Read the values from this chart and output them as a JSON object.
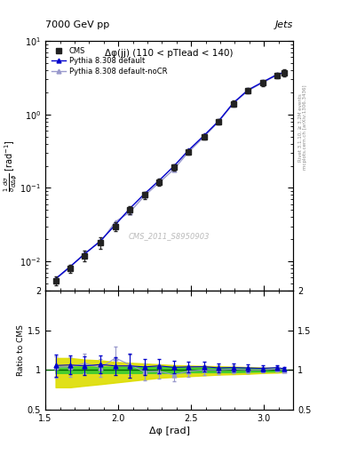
{
  "title_left": "7000 GeV pp",
  "title_right": "Jets",
  "plot_title": "Δφ(jj) (110 < pTlead < 140)",
  "ylabel_main": "$\\frac{1}{\\sigma}\\frac{d\\sigma}{d\\Delta\\phi}$ [rad$^{-1}$]",
  "ylabel_ratio": "Ratio to CMS",
  "xlabel": "Δφ [rad]",
  "watermark": "CMS_2011_S8950903",
  "right_label": "Rivet 3.1.10, ≥ 3.2M events",
  "right_label2": "mcplots.cern.ch [arXiv:1306.3436]",
  "cms_x": [
    1.57,
    1.67,
    1.77,
    1.88,
    1.98,
    2.08,
    2.18,
    2.28,
    2.38,
    2.48,
    2.59,
    2.69,
    2.79,
    2.89,
    2.99,
    3.09,
    3.14
  ],
  "cms_y": [
    0.0055,
    0.008,
    0.012,
    0.018,
    0.03,
    0.05,
    0.08,
    0.12,
    0.19,
    0.31,
    0.5,
    0.8,
    1.4,
    2.1,
    2.7,
    3.4,
    3.7
  ],
  "cms_yerr": [
    0.0008,
    0.001,
    0.002,
    0.003,
    0.004,
    0.006,
    0.009,
    0.013,
    0.018,
    0.028,
    0.045,
    0.07,
    0.13,
    0.18,
    0.25,
    0.32,
    0.38
  ],
  "py_default_x": [
    1.57,
    1.67,
    1.77,
    1.88,
    1.98,
    2.08,
    2.18,
    2.28,
    2.38,
    2.48,
    2.59,
    2.69,
    2.79,
    2.89,
    2.99,
    3.09,
    3.14
  ],
  "py_default_y": [
    0.0058,
    0.0085,
    0.0126,
    0.0192,
    0.0315,
    0.0525,
    0.083,
    0.126,
    0.196,
    0.322,
    0.52,
    0.82,
    1.44,
    2.15,
    2.75,
    3.5,
    3.75
  ],
  "py_nocr_x": [
    1.57,
    1.67,
    1.77,
    1.88,
    1.98,
    2.08,
    2.18,
    2.28,
    2.38,
    2.48,
    2.59,
    2.69,
    2.79,
    2.89,
    2.99,
    3.09,
    3.14
  ],
  "py_nocr_y": [
    0.0057,
    0.0083,
    0.013,
    0.0185,
    0.0345,
    0.047,
    0.078,
    0.118,
    0.178,
    0.305,
    0.5,
    0.8,
    1.41,
    2.1,
    2.7,
    3.44,
    3.68
  ],
  "ratio_cms_err_green_lo": [
    0.04,
    0.04,
    0.04,
    0.04,
    0.04,
    0.04,
    0.04,
    0.04,
    0.04,
    0.03,
    0.03,
    0.03,
    0.03,
    0.025,
    0.02,
    0.02,
    0.015
  ],
  "ratio_cms_err_green_hi": [
    0.04,
    0.04,
    0.04,
    0.04,
    0.04,
    0.04,
    0.04,
    0.04,
    0.04,
    0.03,
    0.03,
    0.03,
    0.03,
    0.025,
    0.02,
    0.02,
    0.015
  ],
  "ratio_cms_err_yellow_lo": [
    0.22,
    0.22,
    0.2,
    0.18,
    0.16,
    0.14,
    0.12,
    0.1,
    0.09,
    0.08,
    0.07,
    0.06,
    0.055,
    0.05,
    0.04,
    0.035,
    0.03
  ],
  "ratio_cms_err_yellow_hi": [
    0.15,
    0.15,
    0.13,
    0.12,
    0.1,
    0.09,
    0.08,
    0.07,
    0.06,
    0.055,
    0.05,
    0.045,
    0.04,
    0.035,
    0.03,
    0.025,
    0.02
  ],
  "ratio_default_y": [
    1.055,
    1.062,
    1.05,
    1.067,
    1.05,
    1.05,
    1.038,
    1.05,
    1.032,
    1.038,
    1.04,
    1.025,
    1.029,
    1.024,
    1.019,
    1.029,
    1.014
  ],
  "ratio_default_yerr": [
    0.14,
    0.12,
    0.12,
    0.11,
    0.11,
    0.15,
    0.1,
    0.09,
    0.08,
    0.07,
    0.06,
    0.055,
    0.05,
    0.04,
    0.035,
    0.03,
    0.025
  ],
  "ratio_nocr_y": [
    1.036,
    1.038,
    1.083,
    1.028,
    1.15,
    1.064,
    0.976,
    0.983,
    0.937,
    0.984,
    1.0,
    1.0,
    1.007,
    1.0,
    1.0,
    1.012,
    0.995
  ],
  "ratio_nocr_yerr": [
    0.14,
    0.12,
    0.12,
    0.11,
    0.14,
    0.13,
    0.11,
    0.09,
    0.08,
    0.07,
    0.06,
    0.055,
    0.05,
    0.04,
    0.035,
    0.03,
    0.025
  ],
  "xlim": [
    1.5,
    3.2
  ],
  "ylim_main": [
    0.004,
    10.0
  ],
  "ylim_ratio": [
    0.5,
    2.0
  ],
  "color_cms": "#222222",
  "color_default": "#0000cc",
  "color_nocr": "#9999cc",
  "color_green": "#33cc33",
  "color_yellow": "#dddd00",
  "bg_color": "#ffffff"
}
